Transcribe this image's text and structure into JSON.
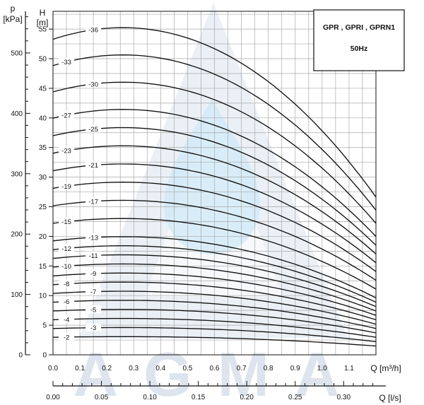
{
  "chart_data": {
    "type": "line",
    "title": "GPR , GPRI , GPRN1",
    "subtitle": "50Hz",
    "watermark": "AGMA",
    "colors": {
      "grid": "#a9a9a9",
      "curve": "#111111",
      "watermark": "#c9d3e4",
      "drop": "#cfe9f7"
    },
    "y_axis_head": {
      "symbol": "H",
      "unit": "[m]",
      "ticks": [
        0,
        5,
        10,
        15,
        20,
        25,
        30,
        35,
        40,
        45,
        50,
        55
      ],
      "range": [
        0,
        58
      ]
    },
    "y_axis_pressure": {
      "symbol": "p",
      "unit": "[kPa]",
      "ticks": [
        0,
        100,
        200,
        300,
        400,
        500
      ],
      "range": [
        0,
        569
      ]
    },
    "x_axis_flow_m3h": {
      "label": "Q [m³/h]",
      "ticks": [
        "0.0",
        "0.1",
        "0.2",
        "0.3",
        "0.4",
        "0.5",
        "0.6",
        "0.7",
        "0.8",
        "0.9",
        "1.0",
        "1.1"
      ],
      "range": [
        0,
        1.2
      ]
    },
    "x_axis_flow_ls": {
      "label": "Q [l/s]",
      "ticks": [
        "0.00",
        "0.05",
        "0.10",
        "0.15",
        "0.20",
        "0.25",
        "0.30"
      ],
      "range": [
        0,
        0.3333
      ]
    },
    "series": [
      {
        "label": "-2",
        "h0": 2.96,
        "h_end": 1.48,
        "label_at": 0.05
      },
      {
        "label": "-3",
        "h0": 4.44,
        "h_end": 2.22,
        "label_at": 0.15
      },
      {
        "label": "-4",
        "h0": 5.92,
        "h_end": 2.96,
        "label_at": 0.05
      },
      {
        "label": "-5",
        "h0": 7.4,
        "h_end": 3.7,
        "label_at": 0.15
      },
      {
        "label": "-6",
        "h0": 8.88,
        "h_end": 4.44,
        "label_at": 0.05
      },
      {
        "label": "-7",
        "h0": 10.36,
        "h_end": 5.18,
        "label_at": 0.15
      },
      {
        "label": "-8",
        "h0": 11.84,
        "h_end": 5.92,
        "label_at": 0.05
      },
      {
        "label": "-9",
        "h0": 13.32,
        "h_end": 6.66,
        "label_at": 0.15
      },
      {
        "label": "-10",
        "h0": 14.8,
        "h_end": 7.4,
        "label_at": 0.05
      },
      {
        "label": "-11",
        "h0": 16.28,
        "h_end": 8.14,
        "label_at": 0.15
      },
      {
        "label": "-12",
        "h0": 17.76,
        "h_end": 8.88,
        "label_at": 0.05
      },
      {
        "label": "-13",
        "h0": 19.24,
        "h_end": 9.62,
        "label_at": 0.15
      },
      {
        "label": "-15",
        "h0": 22.2,
        "h_end": 11.1,
        "label_at": 0.05
      },
      {
        "label": "-17",
        "h0": 25.16,
        "h_end": 12.58,
        "label_at": 0.15
      },
      {
        "label": "-19",
        "h0": 28.12,
        "h_end": 14.06,
        "label_at": 0.05
      },
      {
        "label": "-21",
        "h0": 31.08,
        "h_end": 15.54,
        "label_at": 0.15
      },
      {
        "label": "-23",
        "h0": 34.04,
        "h_end": 17.02,
        "label_at": 0.05
      },
      {
        "label": "-25",
        "h0": 37.0,
        "h_end": 18.5,
        "label_at": 0.15
      },
      {
        "label": "-27",
        "h0": 39.96,
        "h_end": 19.98,
        "label_at": 0.05
      },
      {
        "label": "-30",
        "h0": 44.4,
        "h_end": 22.2,
        "label_at": 0.15
      },
      {
        "label": "-33",
        "h0": 48.84,
        "h_end": 24.42,
        "label_at": 0.05
      },
      {
        "label": "-36",
        "h0": 53.28,
        "h_end": 26.64,
        "label_at": 0.15
      }
    ]
  }
}
